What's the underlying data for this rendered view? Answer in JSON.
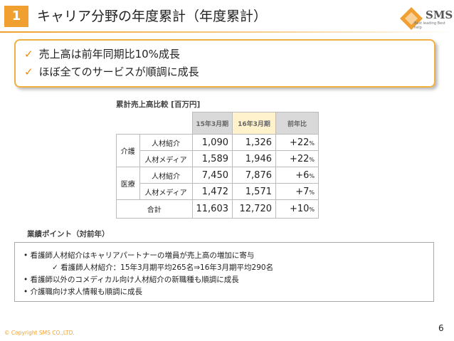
{
  "header": {
    "number": "1",
    "title": "キャリア分野の年度累計（年度累計）",
    "logo": "SMS",
    "logo_tagline": "Best leading Best help"
  },
  "highlights": [
    "売上高は前年同期比10%成長",
    "ほぼ全てのサービスが順調に成長"
  ],
  "table": {
    "caption": "累計売上高比較 [百万円]",
    "columns": [
      "15年3月期",
      "16年3月期",
      "前年比"
    ],
    "groups": [
      {
        "name": "介護",
        "rows": [
          {
            "item": "人材紹介",
            "fy15": "1,090",
            "fy16": "1,326",
            "yoy": "+22",
            "unit": "%"
          },
          {
            "item": "人材メディア",
            "fy15": "1,589",
            "fy16": "1,946",
            "yoy": "+22",
            "unit": "%"
          }
        ]
      },
      {
        "name": "医療",
        "rows": [
          {
            "item": "人材紹介",
            "fy15": "7,450",
            "fy16": "7,876",
            "yoy": "+6",
            "unit": "%"
          },
          {
            "item": "人材メディア",
            "fy15": "1,472",
            "fy16": "1,571",
            "yoy": "+7",
            "unit": "%"
          }
        ]
      }
    ],
    "total": {
      "label": "合計",
      "fy15": "11,603",
      "fy16": "12,720",
      "yoy": "+10",
      "unit": "%"
    }
  },
  "points": {
    "title": "業績ポイント（対前年）",
    "items": [
      {
        "text": "看護師人材紹介はキャリアパートナーの増員が売上高の増加に寄与",
        "sub": "看護師人材紹介：15年3月期平均265名⇒16年3月期平均290名"
      },
      {
        "text": "看護師以外のコメディカル向け人材紹介の新職種も順調に成長"
      },
      {
        "text": "介護職向け求人情報も順調に成長"
      }
    ]
  },
  "footer": {
    "copyright": "© Copyright SMS CO.,LTD.",
    "page": "6"
  }
}
